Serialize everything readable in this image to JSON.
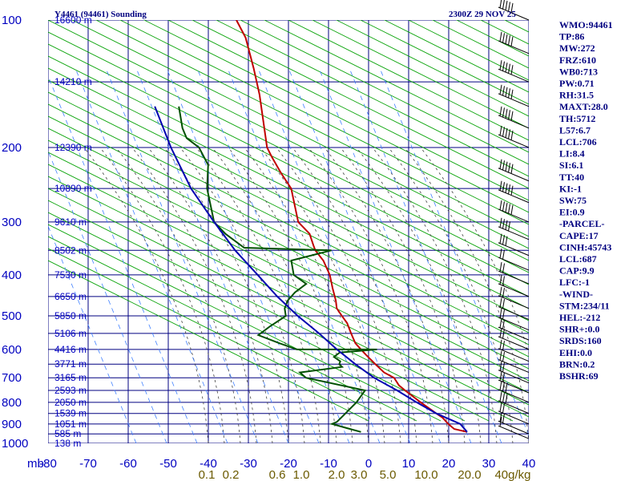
{
  "chart_data": {
    "type": "line",
    "title": "Y4461 (94461) Sounding",
    "time_label": "2300Z 29 NOV 25",
    "pressure_levels": [
      100,
      200,
      300,
      400,
      500,
      600,
      700,
      800,
      900,
      1000
    ],
    "pressure_unit_label": "mb",
    "temperature_ticks": [
      -80,
      -70,
      -60,
      -50,
      -40,
      -30,
      -20,
      -10,
      0,
      10,
      20,
      30,
      40
    ],
    "mixing_ratio_ticks": [
      "0.1",
      "0.2",
      "0.6",
      "1.0",
      "2.0",
      "3.0",
      "5.0",
      "10.0",
      "20.0",
      "40g/kg"
    ],
    "height_labels": [
      {
        "p": 100,
        "label": "16600 m"
      },
      {
        "p": 140,
        "label": "14210 m"
      },
      {
        "p": 200,
        "label": "12390 m"
      },
      {
        "p": 250,
        "label": "10890 m"
      },
      {
        "p": 300,
        "label": "9610 m"
      },
      {
        "p": 350,
        "label": "8502 m"
      },
      {
        "p": 400,
        "label": "7530 m"
      },
      {
        "p": 450,
        "label": "6650 m"
      },
      {
        "p": 500,
        "label": "5850 m"
      },
      {
        "p": 550,
        "label": "5106 m"
      },
      {
        "p": 600,
        "label": "4416 m"
      },
      {
        "p": 650,
        "label": "3771 m"
      },
      {
        "p": 700,
        "label": "3165 m"
      },
      {
        "p": 750,
        "label": "2593 m"
      },
      {
        "p": 800,
        "label": "2050 m"
      },
      {
        "p": 850,
        "label": "1539 m"
      },
      {
        "p": 900,
        "label": "1051 m"
      },
      {
        "p": 950,
        "label": "585 m"
      },
      {
        "p": 1000,
        "label": "138 m"
      }
    ],
    "series": [
      {
        "name": "temperature",
        "color": "#c00000",
        "values": [
          [
            940,
            23.5
          ],
          [
            925,
            20
          ],
          [
            900,
            18
          ],
          [
            870,
            16
          ],
          [
            850,
            14
          ],
          [
            800,
            9
          ],
          [
            750,
            4
          ],
          [
            730,
            2
          ],
          [
            700,
            0
          ],
          [
            680,
            -3
          ],
          [
            650,
            -6
          ],
          [
            620,
            -9
          ],
          [
            600,
            -11
          ],
          [
            580,
            -13
          ],
          [
            550,
            -15
          ],
          [
            520,
            -17
          ],
          [
            500,
            -19
          ],
          [
            480,
            -21
          ],
          [
            460,
            -22
          ],
          [
            430,
            -24
          ],
          [
            400,
            -26
          ],
          [
            370,
            -29
          ],
          [
            350,
            -32
          ],
          [
            340,
            -33
          ],
          [
            320,
            -35
          ],
          [
            300,
            -39
          ],
          [
            250,
            -44
          ],
          [
            230,
            -48
          ],
          [
            210,
            -52
          ],
          [
            200,
            -54
          ],
          [
            150,
            -61
          ],
          [
            130,
            -65
          ],
          [
            110,
            -70
          ],
          [
            100,
            -74
          ]
        ]
      },
      {
        "name": "dewpoint",
        "color": "#005000",
        "values": [
          [
            940,
            -3
          ],
          [
            920,
            -7
          ],
          [
            900,
            -11
          ],
          [
            890,
            -10
          ],
          [
            860,
            -9
          ],
          [
            800,
            -7
          ],
          [
            750,
            -6
          ],
          [
            700,
            -22
          ],
          [
            690,
            -23
          ],
          [
            680,
            -24
          ],
          [
            660,
            -14
          ],
          [
            650,
            -15
          ],
          [
            640,
            -15
          ],
          [
            625,
            -17
          ],
          [
            610,
            -16
          ],
          [
            600,
            -7
          ],
          [
            600,
            -22
          ],
          [
            600,
            -27
          ],
          [
            580,
            -32
          ],
          [
            555,
            -38
          ],
          [
            530,
            -36
          ],
          [
            500,
            -33
          ],
          [
            480,
            -34
          ],
          [
            460,
            -34
          ],
          [
            440,
            -33
          ],
          [
            420,
            -31
          ],
          [
            400,
            -35
          ],
          [
            370,
            -37
          ],
          [
            350,
            -28
          ],
          [
            345,
            -50
          ],
          [
            320,
            -56
          ],
          [
            300,
            -60
          ],
          [
            250,
            -65
          ],
          [
            220,
            -67
          ],
          [
            200,
            -71
          ],
          [
            190,
            -75
          ],
          [
            180,
            -77
          ],
          [
            160,
            -80
          ]
        ]
      },
      {
        "name": "parcel",
        "color": "#0000b0",
        "values": [
          [
            940,
            23.5
          ],
          [
            900,
            21
          ],
          [
            850,
            14
          ],
          [
            800,
            8
          ],
          [
            750,
            2
          ],
          [
            700,
            -5
          ],
          [
            650,
            -11
          ],
          [
            600,
            -17
          ],
          [
            550,
            -23
          ],
          [
            500,
            -30
          ],
          [
            450,
            -37
          ],
          [
            400,
            -44
          ],
          [
            350,
            -52
          ],
          [
            300,
            -60
          ],
          [
            250,
            -69
          ],
          [
            200,
            -78
          ],
          [
            160,
            -86
          ]
        ]
      }
    ],
    "wind_barbs": [
      {
        "p": 100,
        "speed": 60
      },
      {
        "p": 120,
        "speed": 55
      },
      {
        "p": 140,
        "speed": 55
      },
      {
        "p": 160,
        "speed": 50
      },
      {
        "p": 180,
        "speed": 50
      },
      {
        "p": 200,
        "speed": 50
      },
      {
        "p": 240,
        "speed": 50
      },
      {
        "p": 270,
        "speed": 55
      },
      {
        "p": 300,
        "speed": 50
      },
      {
        "p": 330,
        "speed": 40
      },
      {
        "p": 360,
        "speed": 30
      },
      {
        "p": 390,
        "speed": 20
      },
      {
        "p": 420,
        "speed": 20
      },
      {
        "p": 450,
        "speed": 20
      },
      {
        "p": 480,
        "speed": 15
      },
      {
        "p": 510,
        "speed": 15
      },
      {
        "p": 540,
        "speed": 15
      },
      {
        "p": 570,
        "speed": 15
      },
      {
        "p": 600,
        "speed": 15
      },
      {
        "p": 640,
        "speed": 15
      },
      {
        "p": 680,
        "speed": 15
      },
      {
        "p": 720,
        "speed": 20
      },
      {
        "p": 760,
        "speed": 20
      },
      {
        "p": 800,
        "speed": 25
      },
      {
        "p": 850,
        "speed": 25
      },
      {
        "p": 900,
        "speed": 20
      },
      {
        "p": 950,
        "speed": 15
      },
      {
        "p": 975,
        "speed": 10
      }
    ],
    "indices": [
      "WMO:94461",
      "TP:86",
      "MW:272",
      "FRZ:610",
      "WB0:713",
      "PW:0.71",
      "RH:31.5",
      "MAXT:28.0",
      "TH:5712",
      "L57:6.7",
      "LCL:706",
      "LI:8.4",
      "SI:6.1",
      "TT:40",
      "KI:-1",
      "SW:75",
      "EI:0.9",
      "-PARCEL-",
      "CAPE:17",
      "CINH:45743",
      "LCL:687",
      "CAP:9.9",
      "LFC:-1",
      "-WIND-",
      "STM:234/11",
      "HEL:-212",
      "SHR+:0.0",
      "SRDS:160",
      "EHI:0.0",
      "BRN:0.2",
      "BSHR:69"
    ],
    "colors": {
      "grid": "#000080",
      "dry_adiabat": "#00a000",
      "isotherm": "#00a000",
      "moist_adiabat": "#404040",
      "mixing_ratio": "#4080ff"
    }
  }
}
